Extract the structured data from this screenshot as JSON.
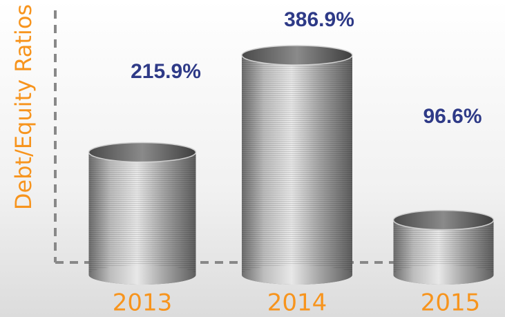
{
  "chart_data": {
    "type": "bar",
    "y_label": "Debt/Equity Ratios",
    "categories": [
      "2013",
      "2014",
      "2015"
    ],
    "values": [
      215.9,
      386.9,
      96.6
    ],
    "value_labels": [
      "215.9%",
      "386.9%",
      "96.6%"
    ],
    "color": "#a9a9a9",
    "label_color": "#2e3a87",
    "axis_color": "#f7941d"
  }
}
